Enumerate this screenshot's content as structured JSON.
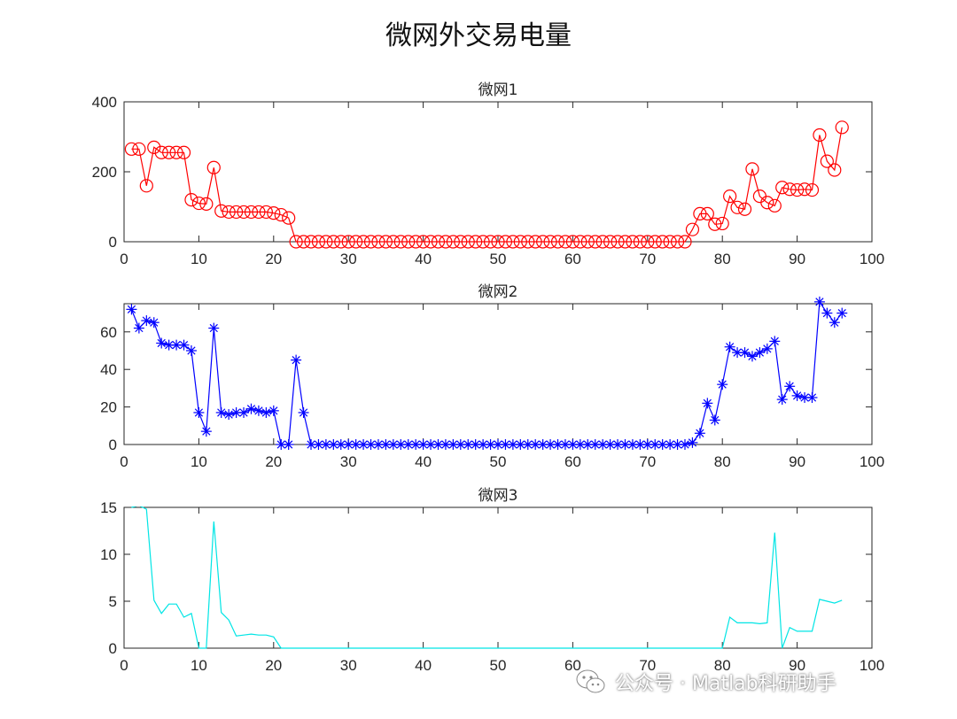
{
  "figure": {
    "title": "微网外交易电量"
  },
  "watermark": {
    "text": "公众号 · Matlab科研助手",
    "icon": "wechat-icon"
  },
  "chart_data": [
    {
      "type": "line",
      "title": "微网1",
      "xlim": [
        0,
        100
      ],
      "ylim": [
        0,
        400
      ],
      "xticks": [
        0,
        10,
        20,
        30,
        40,
        50,
        60,
        70,
        80,
        90,
        100
      ],
      "yticks": [
        0,
        200,
        400
      ],
      "grid": false,
      "color": "#ff0000",
      "marker": "circle",
      "x": [
        1,
        2,
        3,
        4,
        5,
        6,
        7,
        8,
        9,
        10,
        11,
        12,
        13,
        14,
        15,
        16,
        17,
        18,
        19,
        20,
        21,
        22,
        23,
        24,
        25,
        26,
        27,
        28,
        29,
        30,
        31,
        32,
        33,
        34,
        35,
        36,
        37,
        38,
        39,
        40,
        41,
        42,
        43,
        44,
        45,
        46,
        47,
        48,
        49,
        50,
        51,
        52,
        53,
        54,
        55,
        56,
        57,
        58,
        59,
        60,
        61,
        62,
        63,
        64,
        65,
        66,
        67,
        68,
        69,
        70,
        71,
        72,
        73,
        74,
        75,
        76,
        77,
        78,
        79,
        80,
        81,
        82,
        83,
        84,
        85,
        86,
        87,
        88,
        89,
        90,
        91,
        92,
        93,
        94,
        95,
        96
      ],
      "values": [
        265,
        265,
        160,
        270,
        255,
        255,
        255,
        255,
        120,
        110,
        108,
        212,
        88,
        85,
        85,
        85,
        85,
        85,
        85,
        82,
        77,
        68,
        0,
        0,
        0,
        0,
        0,
        0,
        0,
        0,
        0,
        0,
        0,
        0,
        0,
        0,
        0,
        0,
        0,
        0,
        0,
        0,
        0,
        0,
        0,
        0,
        0,
        0,
        0,
        0,
        0,
        0,
        0,
        0,
        0,
        0,
        0,
        0,
        0,
        0,
        0,
        0,
        0,
        0,
        0,
        0,
        0,
        0,
        0,
        0,
        0,
        0,
        0,
        0,
        0,
        35,
        80,
        80,
        50,
        52,
        130,
        98,
        93,
        208,
        130,
        112,
        103,
        155,
        150,
        148,
        150,
        148,
        305,
        230,
        205,
        327
      ]
    },
    {
      "type": "line",
      "title": "微网2",
      "xlim": [
        0,
        100
      ],
      "ylim": [
        0,
        75
      ],
      "xticks": [
        0,
        10,
        20,
        30,
        40,
        50,
        60,
        70,
        80,
        90,
        100
      ],
      "yticks": [
        0,
        20,
        40,
        60
      ],
      "grid": false,
      "color": "#0000ff",
      "marker": "asterisk",
      "x": [
        1,
        2,
        3,
        4,
        5,
        6,
        7,
        8,
        9,
        10,
        11,
        12,
        13,
        14,
        15,
        16,
        17,
        18,
        19,
        20,
        21,
        22,
        23,
        24,
        25,
        26,
        27,
        28,
        29,
        30,
        31,
        32,
        33,
        34,
        35,
        36,
        37,
        38,
        39,
        40,
        41,
        42,
        43,
        44,
        45,
        46,
        47,
        48,
        49,
        50,
        51,
        52,
        53,
        54,
        55,
        56,
        57,
        58,
        59,
        60,
        61,
        62,
        63,
        64,
        65,
        66,
        67,
        68,
        69,
        70,
        71,
        72,
        73,
        74,
        75,
        76,
        77,
        78,
        79,
        80,
        81,
        82,
        83,
        84,
        85,
        86,
        87,
        88,
        89,
        90,
        91,
        92,
        93,
        94,
        95,
        96
      ],
      "values": [
        72,
        62,
        66,
        65,
        54,
        53,
        53,
        53,
        50,
        17,
        7,
        62,
        17,
        16,
        17,
        17,
        19,
        18,
        17,
        18,
        0,
        0,
        45,
        17,
        0,
        0,
        0,
        0,
        0,
        0,
        0,
        0,
        0,
        0,
        0,
        0,
        0,
        0,
        0,
        0,
        0,
        0,
        0,
        0,
        0,
        0,
        0,
        0,
        0,
        0,
        0,
        0,
        0,
        0,
        0,
        0,
        0,
        0,
        0,
        0,
        0,
        0,
        0,
        0,
        0,
        0,
        0,
        0,
        0,
        0,
        0,
        0,
        0,
        0,
        0,
        1,
        6,
        22,
        13,
        32,
        52,
        49,
        49,
        47,
        49,
        51,
        55,
        24,
        31,
        26,
        25,
        25,
        76,
        70,
        65,
        70
      ]
    },
    {
      "type": "line",
      "title": "微网3",
      "xlim": [
        0,
        100
      ],
      "ylim": [
        0,
        15
      ],
      "xticks": [
        0,
        10,
        20,
        30,
        40,
        50,
        60,
        70,
        80,
        90,
        100
      ],
      "yticks": [
        0,
        5,
        10,
        15
      ],
      "grid": false,
      "color": "#00e5e5",
      "marker": "none",
      "x": [
        1,
        2,
        3,
        4,
        5,
        6,
        7,
        8,
        9,
        10,
        11,
        12,
        13,
        14,
        15,
        16,
        17,
        18,
        19,
        20,
        21,
        22,
        23,
        24,
        25,
        26,
        27,
        28,
        29,
        30,
        31,
        32,
        33,
        34,
        35,
        36,
        37,
        38,
        39,
        40,
        41,
        42,
        43,
        44,
        45,
        46,
        47,
        48,
        49,
        50,
        51,
        52,
        53,
        54,
        55,
        56,
        57,
        58,
        59,
        60,
        61,
        62,
        63,
        64,
        65,
        66,
        67,
        68,
        69,
        70,
        71,
        72,
        73,
        74,
        75,
        76,
        77,
        78,
        79,
        80,
        81,
        82,
        83,
        84,
        85,
        86,
        87,
        88,
        89,
        90,
        91,
        92,
        93,
        94,
        95,
        96
      ],
      "values": [
        15,
        15.2,
        14.8,
        5.1,
        3.7,
        4.7,
        4.7,
        3.3,
        3.7,
        0,
        0,
        13.5,
        3.8,
        3.0,
        1.3,
        1.4,
        1.5,
        1.4,
        1.4,
        1.2,
        0,
        0,
        0,
        0,
        0,
        0,
        0,
        0,
        0,
        0,
        0,
        0,
        0,
        0,
        0,
        0,
        0,
        0,
        0,
        0,
        0,
        0,
        0,
        0,
        0,
        0,
        0,
        0,
        0,
        0,
        0,
        0,
        0,
        0,
        0,
        0,
        0,
        0,
        0,
        0,
        0,
        0,
        0,
        0,
        0,
        0,
        0,
        0,
        0,
        0,
        0,
        0,
        0,
        0,
        0,
        0,
        0,
        0,
        0,
        0,
        3.3,
        2.7,
        2.7,
        2.7,
        2.6,
        2.7,
        12.3,
        0,
        2.2,
        1.8,
        1.8,
        1.8,
        5.2,
        5.0,
        4.8,
        5.1
      ]
    }
  ]
}
